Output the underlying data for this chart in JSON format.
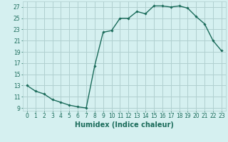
{
  "x": [
    0,
    1,
    2,
    3,
    4,
    5,
    6,
    7,
    8,
    9,
    10,
    11,
    12,
    13,
    14,
    15,
    16,
    17,
    18,
    19,
    20,
    21,
    22,
    23
  ],
  "y": [
    13.0,
    12.0,
    11.5,
    10.5,
    10.0,
    9.5,
    9.2,
    9.0,
    16.5,
    22.5,
    22.8,
    25.0,
    25.0,
    26.2,
    25.8,
    27.2,
    27.2,
    27.0,
    27.2,
    26.8,
    25.3,
    24.0,
    21.0,
    19.2
  ],
  "line_color": "#1a6b5a",
  "marker": "D",
  "marker_size": 1.8,
  "bg_color": "#d5f0f0",
  "grid_color": "#b0d0d0",
  "xlabel": "Humidex (Indice chaleur)",
  "ylabel": "",
  "xlim": [
    -0.5,
    23.5
  ],
  "ylim": [
    8.5,
    28.0
  ],
  "yticks": [
    9,
    11,
    13,
    15,
    17,
    19,
    21,
    23,
    25,
    27
  ],
  "xticks": [
    0,
    1,
    2,
    3,
    4,
    5,
    6,
    7,
    8,
    9,
    10,
    11,
    12,
    13,
    14,
    15,
    16,
    17,
    18,
    19,
    20,
    21,
    22,
    23
  ],
  "tick_fontsize": 5.5,
  "label_fontsize": 7,
  "line_width": 1.0
}
